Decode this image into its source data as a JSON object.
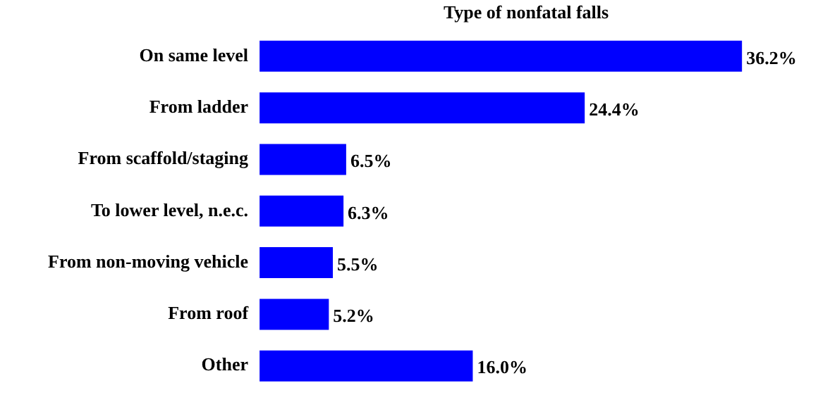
{
  "chart_data": {
    "type": "bar",
    "orientation": "horizontal",
    "title": "Type of nonfatal falls",
    "categories": [
      "On same level",
      "From ladder",
      "From scaffold/staging",
      "To lower level, n.e.c.",
      "From non-moving vehicle",
      "From roof",
      "Other"
    ],
    "values": [
      36.2,
      24.4,
      6.5,
      6.3,
      5.5,
      5.2,
      16.0
    ],
    "value_labels": [
      "36.2%",
      "24.4%",
      "6.5%",
      "6.3%",
      "5.5%",
      "5.2%",
      "16.0%"
    ],
    "color": "#0000ff"
  }
}
